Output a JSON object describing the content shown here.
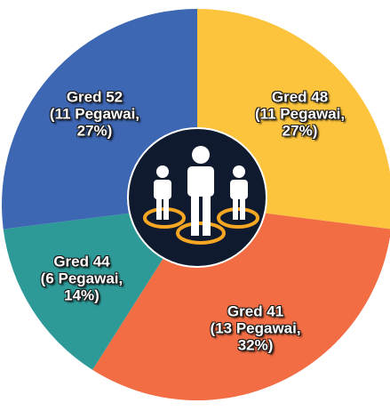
{
  "chart_data": {
    "type": "pie",
    "categories": [
      "Gred 48",
      "Gred 41",
      "Gred 44",
      "Gred 52"
    ],
    "values": [
      27,
      32,
      14,
      27
    ],
    "value_labels": [
      "(11 Pegawai, 27%)",
      "(13 Pegawai, 32%)",
      "(6 Pegawai, 14%)",
      "(11 Pegawai, 27%)"
    ],
    "colors": [
      "#fcc43c",
      "#f26d44",
      "#2e9a98",
      "#3d66b3"
    ]
  }
}
